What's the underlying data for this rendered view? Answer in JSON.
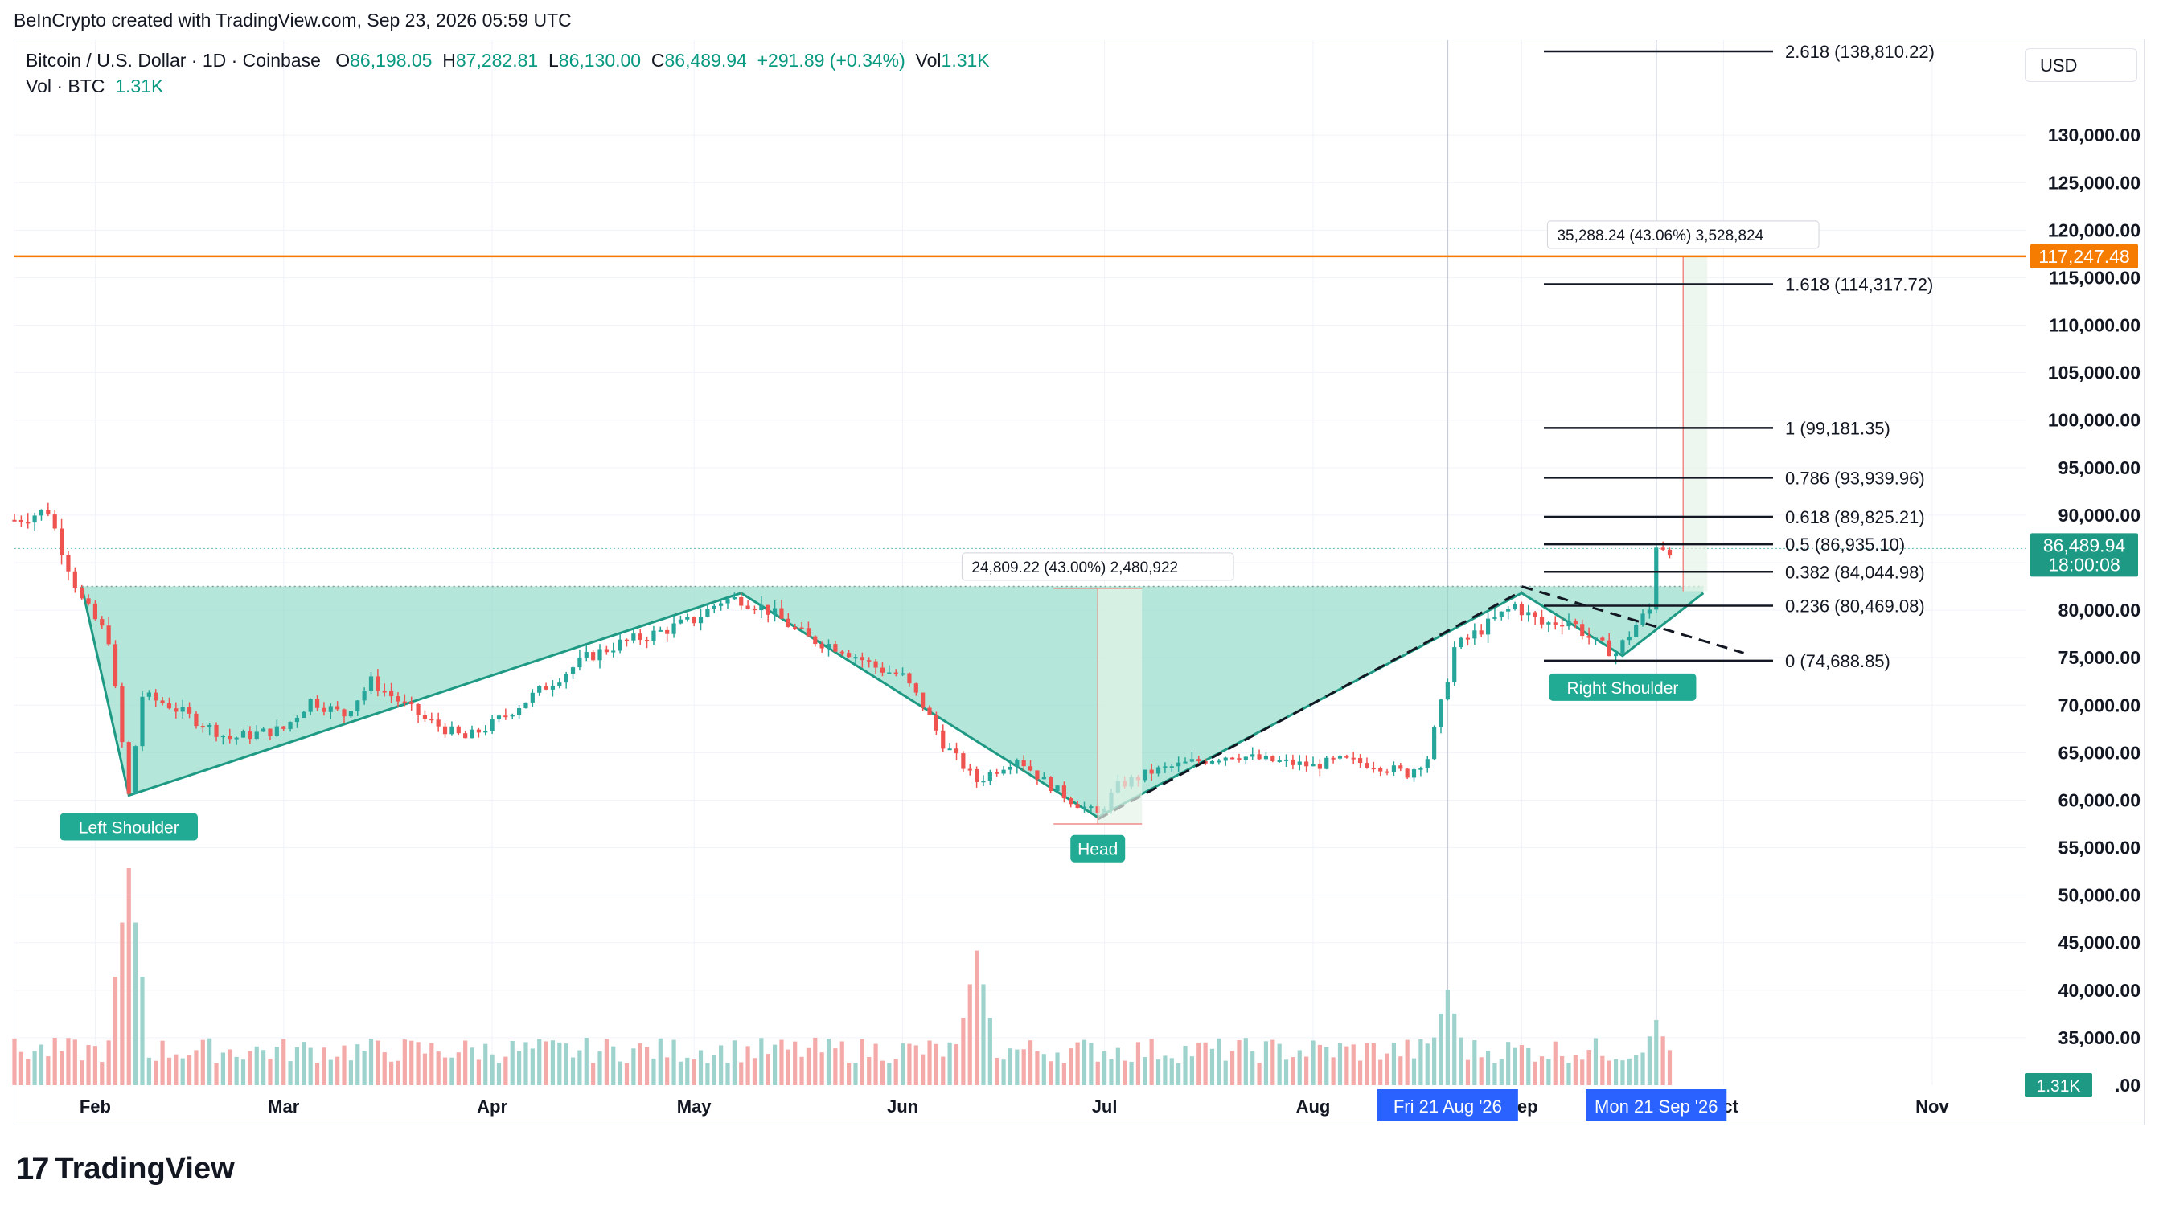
{
  "header": {
    "attribution": "BeInCrypto created with TradingView.com, Sep 23, 2026 05:59 UTC"
  },
  "legend": {
    "symbol": "Bitcoin / U.S. Dollar · 1D · Coinbase",
    "o_label": "O",
    "o_value": "86,198.05",
    "h_label": "H",
    "h_value": "87,282.81",
    "l_label": "L",
    "l_value": "86,130.00",
    "c_label": "C",
    "c_value": "86,489.94",
    "change": "+291.89 (+0.34%)",
    "vol_label": "Vol",
    "vol_value": "1.31K",
    "vol2_label": "Vol · BTC",
    "vol2_value": "1.31K"
  },
  "currency_button": "USD",
  "brand": {
    "name": "TradingView",
    "logo_text": "17"
  },
  "colors": {
    "up": "#26a69a",
    "down": "#ef5350",
    "pattern_fill": "#8ed9c6",
    "pattern_line": "#1e9a84",
    "resistance": "#f57c00",
    "label_bg": "#22ab94",
    "date_bg": "#2962ff",
    "text": "#131722",
    "grid": "#f0f3fa"
  },
  "chart_data": {
    "type": "candlestick",
    "pair": "BTC/USD",
    "interval": "1D",
    "y_axis": {
      "min": 30000,
      "max": 140000,
      "ticks": [
        35000,
        40000,
        45000,
        50000,
        55000,
        60000,
        65000,
        70000,
        75000,
        80000,
        85000,
        90000,
        95000,
        100000,
        105000,
        110000,
        115000,
        120000,
        125000,
        130000
      ],
      "tick_labels": [
        "35,000.00",
        "40,000.00",
        "45,000.00",
        "50,000.00",
        "55,000.00",
        "60,000.00",
        "65,000.00",
        "70,000.00",
        "75,000.00",
        "80,000.00",
        "",
        "90,000.00",
        "95,000.00",
        "100,000.00",
        "105,000.00",
        "110,000.00",
        "115,000.00",
        "120,000.00",
        "125,000.00",
        "130,000.00"
      ],
      "bottom_label": ".00"
    },
    "x_axis": {
      "start": "2026-01-20",
      "end": "2026-11-15",
      "ticks": [
        {
          "date": "2026-02-01",
          "label": "Feb"
        },
        {
          "date": "2026-03-01",
          "label": "Mar"
        },
        {
          "date": "2026-04-01",
          "label": "Apr"
        },
        {
          "date": "2026-05-01",
          "label": "May"
        },
        {
          "date": "2026-06-01",
          "label": "Jun"
        },
        {
          "date": "2026-07-01",
          "label": "Jul"
        },
        {
          "date": "2026-08-01",
          "label": "Aug"
        },
        {
          "date": "2026-09-01",
          "label": "Sep"
        },
        {
          "date": "2026-10-01",
          "label": "Oct"
        },
        {
          "date": "2026-11-01",
          "label": "Nov"
        }
      ],
      "highlighted_dates": [
        {
          "date": "2026-08-21",
          "label": "Fri 21 Aug '26"
        },
        {
          "date": "2026-09-21",
          "label": "Mon 21 Sep '26"
        }
      ]
    },
    "price_path": [
      [
        "2026-01-20",
        89500
      ],
      [
        "2026-01-25",
        90500
      ],
      [
        "2026-01-27",
        86500
      ],
      [
        "2026-01-30",
        81000
      ],
      [
        "2026-02-03",
        77000
      ],
      [
        "2026-02-06",
        60500
      ],
      [
        "2026-02-08",
        71000
      ],
      [
        "2026-02-12",
        70000
      ],
      [
        "2026-02-17",
        68000
      ],
      [
        "2026-02-21",
        66500
      ],
      [
        "2026-02-25",
        67000
      ],
      [
        "2026-03-01",
        67500
      ],
      [
        "2026-03-05",
        70500
      ],
      [
        "2026-03-10",
        69000
      ],
      [
        "2026-03-14",
        72500
      ],
      [
        "2026-03-17",
        71000
      ],
      [
        "2026-03-22",
        68500
      ],
      [
        "2026-03-28",
        66500
      ],
      [
        "2026-04-01",
        68000
      ],
      [
        "2026-04-05",
        70000
      ],
      [
        "2026-04-10",
        72500
      ],
      [
        "2026-04-15",
        75000
      ],
      [
        "2026-04-20",
        76500
      ],
      [
        "2026-04-25",
        77500
      ],
      [
        "2026-05-01",
        79000
      ],
      [
        "2026-05-05",
        81000
      ],
      [
        "2026-05-08",
        81200
      ],
      [
        "2026-05-12",
        80000
      ],
      [
        "2026-05-18",
        77000
      ],
      [
        "2026-05-23",
        76000
      ],
      [
        "2026-05-28",
        74000
      ],
      [
        "2026-06-01",
        73000
      ],
      [
        "2026-06-04",
        70000
      ],
      [
        "2026-06-07",
        66000
      ],
      [
        "2026-06-12",
        62000
      ],
      [
        "2026-06-18",
        64500
      ],
      [
        "2026-06-22",
        62000
      ],
      [
        "2026-06-26",
        60000
      ],
      [
        "2026-06-30",
        58500
      ],
      [
        "2026-07-03",
        61500
      ],
      [
        "2026-07-08",
        63000
      ],
      [
        "2026-07-14",
        64000
      ],
      [
        "2026-07-20",
        64800
      ],
      [
        "2026-07-25",
        64200
      ],
      [
        "2026-08-01",
        63600
      ],
      [
        "2026-08-05",
        64200
      ],
      [
        "2026-08-10",
        63800
      ],
      [
        "2026-08-15",
        62800
      ],
      [
        "2026-08-18",
        64500
      ],
      [
        "2026-08-20",
        70000
      ],
      [
        "2026-08-22",
        76000
      ],
      [
        "2026-08-26",
        78000
      ],
      [
        "2026-08-31",
        80500
      ],
      [
        "2026-09-04",
        78500
      ],
      [
        "2026-09-08",
        79000
      ],
      [
        "2026-09-12",
        76500
      ],
      [
        "2026-09-15",
        75500
      ],
      [
        "2026-09-18",
        78500
      ],
      [
        "2026-09-20",
        80000
      ],
      [
        "2026-09-21",
        87000
      ],
      [
        "2026-09-23",
        86489.94
      ]
    ],
    "volume_relative_peaks": [
      {
        "date": "2026-02-06",
        "value": 1.0
      },
      {
        "date": "2026-06-12",
        "value": 0.62
      },
      {
        "date": "2026-08-21",
        "value": 0.44
      },
      {
        "date": "2026-09-21",
        "value": 0.3
      }
    ],
    "current_price": {
      "value": 86489.94,
      "label": "86,489.94",
      "countdown": "18:00:08"
    },
    "current_volume_label": "1.31K",
    "resistance_line": {
      "value": 117247.48,
      "label": "117,247.48"
    },
    "neckline": {
      "value": 82500
    },
    "pattern": {
      "name": "inverse head and shoulders",
      "points": [
        {
          "date": "2026-01-30",
          "price": 82500
        },
        {
          "date": "2026-02-06",
          "price": 60500,
          "label": "Left Shoulder"
        },
        {
          "date": "2026-05-08",
          "price": 81800
        },
        {
          "date": "2026-06-30",
          "price": 58200,
          "label": "Head"
        },
        {
          "date": "2026-09-01",
          "price": 81800
        },
        {
          "date": "2026-09-16",
          "price": 75200,
          "label": "Right Shoulder"
        },
        {
          "date": "2026-09-28",
          "price": 81800
        }
      ]
    },
    "measurements": [
      {
        "date": "2026-06-30",
        "from": 57500,
        "to": 82300,
        "label": "24,809.22 (43.00%) 2,480,922"
      },
      {
        "date": "2026-09-25",
        "from": 82000,
        "to": 117247.48,
        "label": "35,288.24 (43.06%) 3,528,824"
      }
    ],
    "fibonacci": {
      "levels": [
        {
          "ratio": "2.618",
          "value": 138810.22,
          "label": "2.618 (138,810.22)"
        },
        {
          "ratio": "1.618",
          "value": 114317.72,
          "label": "1.618 (114,317.72)"
        },
        {
          "ratio": "1",
          "value": 99181.35,
          "label": "1 (99,181.35)"
        },
        {
          "ratio": "0.786",
          "value": 93939.96,
          "label": "0.786 (93,939.96)"
        },
        {
          "ratio": "0.618",
          "value": 89825.21,
          "label": "0.618 (89,825.21)"
        },
        {
          "ratio": "0.5",
          "value": 86935.1,
          "label": "0.5 (86,935.10)"
        },
        {
          "ratio": "0.382",
          "value": 84044.98,
          "label": "0.382 (84,044.98)"
        },
        {
          "ratio": "0.236",
          "value": 80469.08,
          "label": "0.236 (80,469.08)"
        },
        {
          "ratio": "0",
          "value": 74688.85,
          "label": "0 (74,688.85)"
        }
      ]
    },
    "trendlines": [
      {
        "from": [
          "2026-06-30",
          58000
        ],
        "to": [
          "2026-09-01",
          82000
        ],
        "style": "dashed"
      },
      {
        "from": [
          "2026-09-01",
          82500
        ],
        "to": [
          "2026-10-04",
          75500
        ],
        "style": "dashed"
      }
    ]
  }
}
